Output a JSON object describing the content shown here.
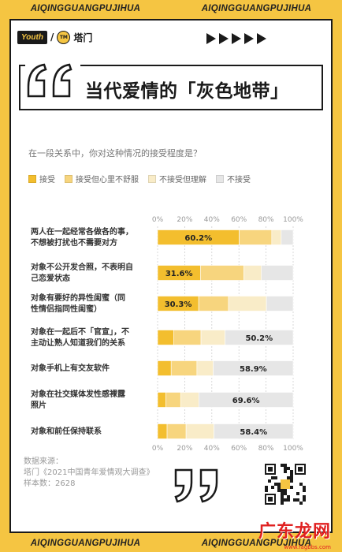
{
  "banner": {
    "text": "AIQINGGUANGPUJIHUA"
  },
  "brand": {
    "logo_text": "Youth",
    "divider": "/",
    "badge_text": "TM",
    "name": "塔门"
  },
  "title": "当代爱情的「灰色地带」",
  "question": "在一段关系中，你对这种情况的接受程度是？",
  "colors": {
    "accept": "#f3be2e",
    "accept_uncomfortable": "#f7d57e",
    "not_accept_understand": "#f9ecc8",
    "not_accept": "#e6e6e6",
    "accent": "#f5c542"
  },
  "legend": [
    {
      "label": "接受",
      "key": "accept"
    },
    {
      "label": "接受但心里不舒服",
      "key": "accept_uncomfortable"
    },
    {
      "label": "不接受但理解",
      "key": "not_accept_understand"
    },
    {
      "label": "不接受",
      "key": "not_accept"
    }
  ],
  "chart_data": {
    "type": "bar",
    "orientation": "horizontal",
    "stacked": true,
    "xlim": [
      0,
      100
    ],
    "x_ticks": [
      "0%",
      "20%",
      "40%",
      "60%",
      "80%",
      "100%"
    ],
    "categories": [
      [
        "两人在一起经常各做各的事，",
        "不想被打扰也不需要对方"
      ],
      [
        "对象不公开发合照，不表明自",
        "己恋爱状态"
      ],
      [
        "对象有要好的异性闺蜜（同",
        "性情侣指同性闺蜜）"
      ],
      [
        "对象在一起后不「官宣」，不",
        "主动让熟人知道我们的关系"
      ],
      [
        "对象手机上有交友软件"
      ],
      [
        "对象在社交媒体发性感裸露",
        "照片"
      ],
      [
        "对象和前任保持联系"
      ]
    ],
    "series": [
      {
        "name": "接受",
        "values": [
          60.2,
          31.6,
          30.3,
          12.0,
          10.0,
          6.0,
          7.0
        ]
      },
      {
        "name": "接受但心里不舒服",
        "values": [
          24.0,
          32.0,
          22.0,
          20.0,
          19.0,
          11.0,
          14.0
        ]
      },
      {
        "name": "不接受但理解",
        "values": [
          7.0,
          13.0,
          28.0,
          17.8,
          12.1,
          13.4,
          20.6
        ]
      },
      {
        "name": "不接受",
        "values": [
          8.8,
          23.4,
          19.7,
          50.2,
          58.9,
          69.6,
          58.4
        ]
      }
    ],
    "data_labels": [
      "60.2%",
      "31.6%",
      "30.3%",
      "50.2%",
      "58.9%",
      "69.6%",
      "58.4%"
    ],
    "label_series": [
      0,
      0,
      0,
      3,
      3,
      3,
      3
    ]
  },
  "source": {
    "heading": "数据来源：",
    "line1": "塔门《2021中国青年爱情观大调查》",
    "line2": "样本数：2628"
  },
  "watermark": {
    "text": "广东龙网",
    "sub": "www.fagbbs.com"
  }
}
